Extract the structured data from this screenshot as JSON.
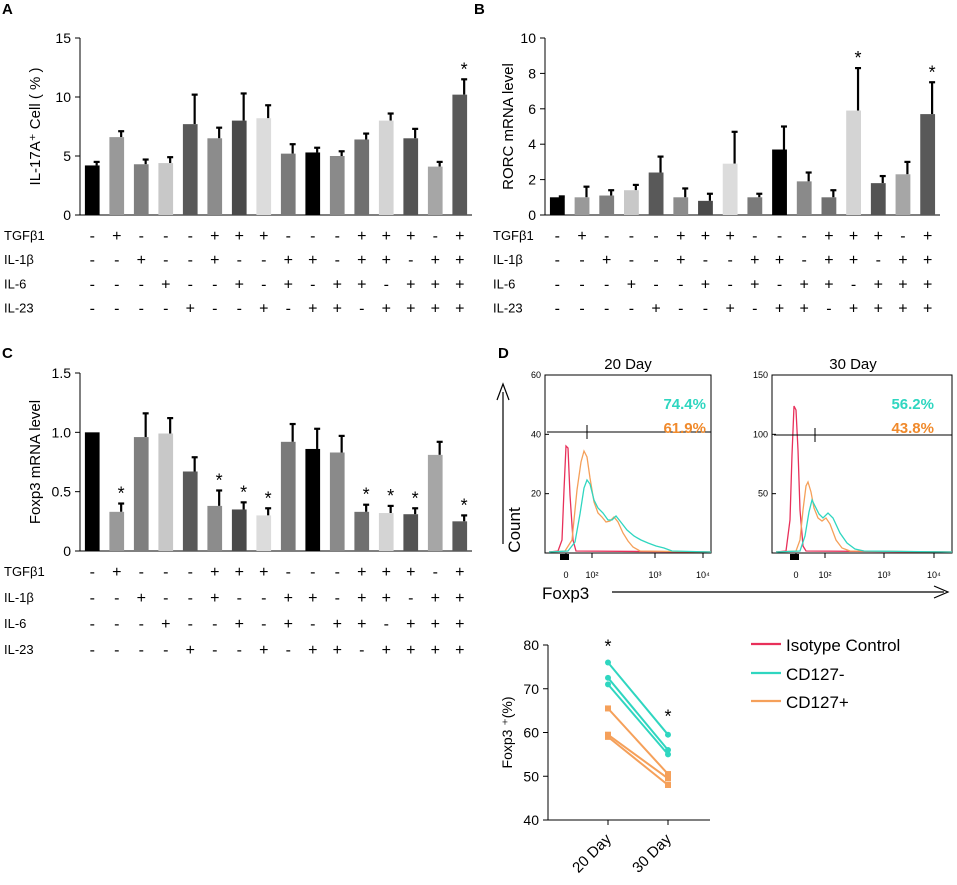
{
  "panel_letters": {
    "A": "A",
    "B": "B",
    "C": "C",
    "D": "D"
  },
  "treatments": {
    "labels": [
      "TGFβ1",
      "IL-1β",
      "IL-6",
      "IL-23"
    ],
    "matrix": [
      [
        "-",
        "-",
        "-",
        "-"
      ],
      [
        "+",
        "-",
        "-",
        "-"
      ],
      [
        "-",
        "+",
        "-",
        "-"
      ],
      [
        "-",
        "-",
        "+",
        "-"
      ],
      [
        "-",
        "-",
        "-",
        "+"
      ],
      [
        "+",
        "+",
        "-",
        "-"
      ],
      [
        "+",
        "-",
        "+",
        "-"
      ],
      [
        "+",
        "-",
        "-",
        "+"
      ],
      [
        "-",
        "+",
        "+",
        "-"
      ],
      [
        "-",
        "+",
        "-",
        "+"
      ],
      [
        "-",
        "-",
        "+",
        "+"
      ],
      [
        "+",
        "+",
        "+",
        "-"
      ],
      [
        "+",
        "+",
        "-",
        "+"
      ],
      [
        "+",
        "-",
        "+",
        "+"
      ],
      [
        "-",
        "+",
        "+",
        "+"
      ],
      [
        "+",
        "+",
        "+",
        "+"
      ]
    ]
  },
  "colors": {
    "bars": [
      "#000000",
      "#999999",
      "#7f7f7f",
      "#c8c8c8",
      "#595959",
      "#8c8c8c",
      "#4a4a4a",
      "#dcdcdc",
      "#7a7a7a",
      "#000000",
      "#8a8a8a",
      "#707070",
      "#d4d4d4",
      "#545454",
      "#a6a6a6",
      "#595959"
    ],
    "isotype": "#e8305a",
    "cd127_neg": "#2fd6c0",
    "cd127_pos": "#f5a05a",
    "cd127_pos_text": "#f08a2c"
  },
  "chart_data": [
    {
      "id": "A",
      "type": "bar",
      "ylabel": "IL-17A⁺ Cell ( % )",
      "ylim": [
        0,
        15
      ],
      "yticks": [
        "0",
        "5",
        "10",
        "15"
      ],
      "ytick_values": [
        0,
        5,
        10,
        15
      ],
      "values": [
        4.2,
        6.6,
        4.3,
        4.4,
        7.7,
        6.5,
        8.0,
        8.2,
        5.2,
        5.3,
        5.0,
        6.4,
        8.0,
        6.5,
        4.1,
        10.2
      ],
      "errors": [
        0.3,
        0.5,
        0.4,
        0.5,
        2.5,
        0.9,
        2.3,
        1.1,
        0.8,
        0.4,
        0.4,
        0.5,
        0.6,
        0.8,
        0.4,
        1.3
      ],
      "significance": [
        "",
        "",
        "",
        "",
        "",
        "",
        "",
        "",
        "",
        "",
        "",
        "",
        "",
        "",
        "",
        "*"
      ]
    },
    {
      "id": "B",
      "type": "bar",
      "ylabel": "RORC mRNA  level",
      "ylim": [
        0,
        10
      ],
      "yticks": [
        "0",
        "2",
        "4",
        "6",
        "8",
        "10"
      ],
      "ytick_values": [
        0,
        2,
        4,
        6,
        8,
        10
      ],
      "values": [
        1.0,
        1.0,
        1.1,
        1.4,
        2.4,
        1.0,
        0.8,
        2.9,
        1.0,
        3.7,
        1.9,
        1.0,
        5.9,
        1.8,
        2.3,
        5.7
      ],
      "errors": [
        0.05,
        0.6,
        0.3,
        0.3,
        0.9,
        0.5,
        0.4,
        1.8,
        0.2,
        1.3,
        0.5,
        0.4,
        2.4,
        0.4,
        0.7,
        1.8
      ],
      "significance": [
        "",
        "",
        "",
        "",
        "",
        "",
        "",
        "",
        "",
        "",
        "",
        "",
        "*",
        "",
        "",
        "*"
      ]
    },
    {
      "id": "C",
      "type": "bar",
      "ylabel": "Foxp3 mRNA  level",
      "ylim": [
        0,
        1.5
      ],
      "yticks": [
        "0",
        "0.5",
        "1.0",
        "1.5"
      ],
      "ytick_values": [
        0,
        0.5,
        1.0,
        1.5
      ],
      "values": [
        1.0,
        0.33,
        0.96,
        0.99,
        0.67,
        0.38,
        0.35,
        0.3,
        0.92,
        0.86,
        0.83,
        0.33,
        0.32,
        0.31,
        0.81,
        0.25
      ],
      "errors": [
        0.0,
        0.07,
        0.2,
        0.13,
        0.12,
        0.13,
        0.06,
        0.06,
        0.15,
        0.17,
        0.14,
        0.06,
        0.06,
        0.05,
        0.11,
        0.05
      ],
      "significance": [
        "",
        "*",
        "",
        "",
        "",
        "*",
        "*",
        "*",
        "",
        "",
        "",
        "*",
        "*",
        "*",
        "",
        "*"
      ]
    },
    {
      "id": "D-hist-20",
      "type": "histogram",
      "title": "20 Day",
      "xlabel": "Foxp3",
      "ylabel": "Count",
      "ylim": [
        0,
        60
      ],
      "yticks": [
        "20",
        "40",
        "60"
      ],
      "ytick_values": [
        20,
        40,
        60
      ],
      "xticks": [
        "0",
        "10²",
        "10³",
        "10⁴"
      ],
      "gate_cd127_neg": "74.4%",
      "gate_cd127_pos": "61.9%"
    },
    {
      "id": "D-hist-30",
      "type": "histogram",
      "title": "30 Day",
      "ylim": [
        0,
        150
      ],
      "yticks": [
        "50",
        "100",
        "150"
      ],
      "ytick_values": [
        50,
        100,
        150
      ],
      "xticks": [
        "0",
        "10²",
        "10³",
        "10⁴"
      ],
      "gate_cd127_neg": "56.2%",
      "gate_cd127_pos": "43.8%"
    },
    {
      "id": "D-line",
      "type": "line",
      "ylabel": "Foxp3 ⁺(%)",
      "categories": [
        "20 Day",
        "30 Day"
      ],
      "ylim": [
        40,
        80
      ],
      "yticks": [
        "40",
        "50",
        "60",
        "70",
        "80"
      ],
      "ytick_values": [
        40,
        50,
        60,
        70,
        80
      ],
      "series": [
        {
          "name": "CD127-",
          "pairs": [
            [
              76,
              59.5
            ],
            [
              72.5,
              56
            ],
            [
              71,
              55
            ]
          ]
        },
        {
          "name": "CD127+",
          "pairs": [
            [
              65.5,
              50.5
            ],
            [
              59.5,
              49.5
            ],
            [
              59,
              48
            ]
          ]
        }
      ],
      "significance": [
        "*",
        "*"
      ],
      "legend": [
        "Isotype Control",
        "CD127-",
        "CD127+"
      ]
    }
  ]
}
